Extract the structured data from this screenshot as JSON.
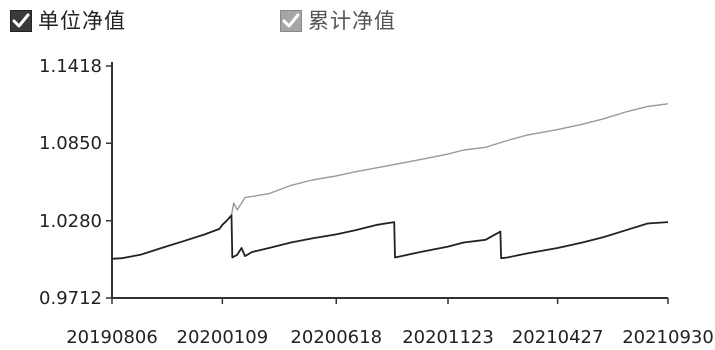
{
  "legend": [
    {
      "label": "单位净值",
      "checked": true,
      "color": "#222222",
      "checkbox_color": "#333333"
    },
    {
      "label": "累计净值",
      "checked": true,
      "color": "#9a9a9a",
      "checkbox_color": "#9a9a9a"
    }
  ],
  "chart_data": {
    "type": "line",
    "xlabel": "",
    "ylabel": "",
    "ylim": [
      0.9712,
      1.1418
    ],
    "yticks": [
      {
        "value": 0.9712,
        "label": "0.9712"
      },
      {
        "value": 1.028,
        "label": "1.0280"
      },
      {
        "value": 1.085,
        "label": "1.0850"
      },
      {
        "value": 1.1418,
        "label": "1.1418"
      }
    ],
    "xlim": [
      "2019-08-06",
      "2021-09-30"
    ],
    "xticks": [
      {
        "date": "2019-08-06",
        "label": "20190806"
      },
      {
        "date": "2020-01-09",
        "label": "20200109"
      },
      {
        "date": "2020-06-18",
        "label": "20200618"
      },
      {
        "date": "2020-11-23",
        "label": "20201123"
      },
      {
        "date": "2021-04-27",
        "label": "20210427"
      },
      {
        "date": "2021-09-30",
        "label": "20210930"
      }
    ],
    "grid": false,
    "series": [
      {
        "name": "单位净值",
        "color": "#222222",
        "points": [
          [
            "2019-08-06",
            1.0
          ],
          [
            "2019-08-20",
            1.0005
          ],
          [
            "2019-09-15",
            1.003
          ],
          [
            "2019-10-15",
            1.008
          ],
          [
            "2019-11-15",
            1.013
          ],
          [
            "2019-12-15",
            1.018
          ],
          [
            "2020-01-05",
            1.022
          ],
          [
            "2020-01-09",
            1.025
          ],
          [
            "2020-01-15",
            1.028
          ],
          [
            "2020-01-22",
            1.032
          ],
          [
            "2020-01-23",
            1.001
          ],
          [
            "2020-01-30",
            1.003
          ],
          [
            "2020-02-05",
            1.008
          ],
          [
            "2020-02-10",
            1.002
          ],
          [
            "2020-02-20",
            1.005
          ],
          [
            "2020-03-15",
            1.008
          ],
          [
            "2020-04-15",
            1.012
          ],
          [
            "2020-05-15",
            1.015
          ],
          [
            "2020-06-18",
            1.018
          ],
          [
            "2020-07-15",
            1.021
          ],
          [
            "2020-08-15",
            1.025
          ],
          [
            "2020-09-08",
            1.027
          ],
          [
            "2020-09-09",
            1.001
          ],
          [
            "2020-10-15",
            1.005
          ],
          [
            "2020-11-23",
            1.009
          ],
          [
            "2020-12-15",
            1.012
          ],
          [
            "2021-01-15",
            1.014
          ],
          [
            "2021-02-05",
            1.02
          ],
          [
            "2021-02-06",
            1.0005
          ],
          [
            "2021-02-15",
            1.001
          ],
          [
            "2021-03-15",
            1.004
          ],
          [
            "2021-04-27",
            1.008
          ],
          [
            "2021-06-01",
            1.012
          ],
          [
            "2021-07-01",
            1.016
          ],
          [
            "2021-08-01",
            1.021
          ],
          [
            "2021-09-01",
            1.026
          ],
          [
            "2021-09-30",
            1.027
          ]
        ]
      },
      {
        "name": "累计净值",
        "color": "#9a9a9a",
        "points": [
          [
            "2019-08-06",
            1.0
          ],
          [
            "2019-08-20",
            1.0005
          ],
          [
            "2019-09-15",
            1.003
          ],
          [
            "2019-10-15",
            1.008
          ],
          [
            "2019-11-15",
            1.013
          ],
          [
            "2019-12-15",
            1.018
          ],
          [
            "2020-01-05",
            1.022
          ],
          [
            "2020-01-09",
            1.025
          ],
          [
            "2020-01-15",
            1.028
          ],
          [
            "2020-01-22",
            1.032
          ],
          [
            "2020-01-25",
            1.041
          ],
          [
            "2020-01-30",
            1.036
          ],
          [
            "2020-02-10",
            1.045
          ],
          [
            "2020-03-15",
            1.048
          ],
          [
            "2020-04-15",
            1.054
          ],
          [
            "2020-05-15",
            1.058
          ],
          [
            "2020-06-18",
            1.061
          ],
          [
            "2020-07-15",
            1.064
          ],
          [
            "2020-08-15",
            1.067
          ],
          [
            "2020-09-15",
            1.07
          ],
          [
            "2020-10-15",
            1.073
          ],
          [
            "2020-11-23",
            1.077
          ],
          [
            "2020-12-15",
            1.08
          ],
          [
            "2021-01-15",
            1.082
          ],
          [
            "2021-02-15",
            1.087
          ],
          [
            "2021-03-15",
            1.091
          ],
          [
            "2021-04-27",
            1.095
          ],
          [
            "2021-06-01",
            1.099
          ],
          [
            "2021-07-01",
            1.103
          ],
          [
            "2021-08-01",
            1.108
          ],
          [
            "2021-09-01",
            1.112
          ],
          [
            "2021-09-30",
            1.114
          ]
        ]
      }
    ]
  }
}
